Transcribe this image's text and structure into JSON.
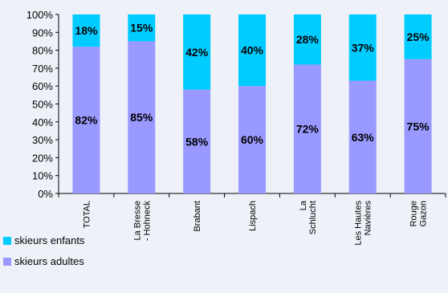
{
  "chart_data": {
    "type": "bar",
    "stacked": true,
    "percent": true,
    "categories": [
      [
        "TOTAL"
      ],
      [
        "La Bresse",
        "- Hohneck"
      ],
      [
        "Brabant"
      ],
      [
        "Lispach"
      ],
      [
        "La",
        "Schlucht"
      ],
      [
        "Les Hautes",
        "Navières"
      ],
      [
        "Rouge",
        "Gazon"
      ]
    ],
    "series": [
      {
        "name": "skieurs adultes",
        "color": "#9999ff",
        "values": [
          82,
          85,
          58,
          60,
          72,
          63,
          75
        ]
      },
      {
        "name": "skieurs enfants",
        "color": "#00ccff",
        "values": [
          18,
          15,
          42,
          40,
          28,
          37,
          25
        ]
      }
    ],
    "ylim": [
      0,
      100
    ],
    "yticks": [
      "0%",
      "10%",
      "20%",
      "30%",
      "40%",
      "50%",
      "60%",
      "70%",
      "80%",
      "90%",
      "100%"
    ],
    "grid": false,
    "legend_position": "bottom-left"
  },
  "legend": [
    {
      "label": "skieurs enfants",
      "color": "#00ccff"
    },
    {
      "label": "skieurs adultes",
      "color": "#9999ff"
    }
  ]
}
